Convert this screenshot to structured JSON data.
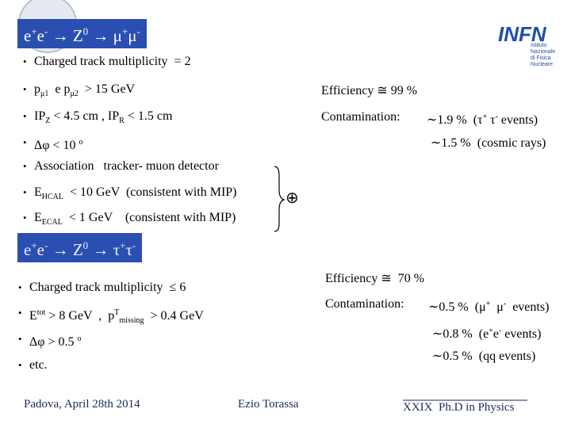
{
  "slide": {
    "title_1": [
      "e",
      "+",
      "e",
      "-",
      " → Z",
      "0",
      " → μ",
      "+",
      "μ",
      "-"
    ],
    "logo": {
      "name": "INFN",
      "subtitle": [
        "Istituto Nazionale",
        "di Fisica Nucleare"
      ]
    },
    "bullets_1": [
      [
        "Charged track multiplicity  = 2"
      ],
      [
        "p",
        "μ1",
        "  e p",
        "μ2",
        "  > 15 GeV"
      ],
      [
        "IP",
        "Z",
        " < 4.5 cm , IP",
        "R",
        " < 1.5 cm"
      ],
      [
        "Δφ < 10 ",
        "o"
      ],
      [
        "Association   tracker- muon detector"
      ],
      [
        "E",
        "HCAL",
        "  < 10 GeV  (consistent with MIP)"
      ],
      [
        "E",
        "ECAL",
        "  < 1 GeV    (consistent with MIP)"
      ]
    ],
    "operator": "⊕",
    "results_1": [
      [
        "Efficiency ≅ 99 %"
      ],
      [
        "Contamination:"
      ],
      [
        "∼1.9 %  (τ",
        "+",
        " τ",
        "-",
        " events)"
      ],
      [
        "∼1.5 %  (cosmic rays)"
      ]
    ],
    "title_2": [
      "e",
      "+",
      "e",
      "-",
      " → Z",
      "0",
      " → τ",
      "+",
      "τ",
      "-"
    ],
    "bullets_2": [
      [
        "Charged track multiplicity  ≤ 6"
      ],
      [
        "E",
        "tot",
        " > 8 GeV  ,  p",
        "T",
        "missing",
        "  > 0.4 GeV"
      ],
      [
        "Δφ > 0.5 ",
        "o"
      ],
      [
        "etc."
      ]
    ],
    "results_2": [
      [
        "Efficiency ≅  70 %"
      ],
      [
        "Contamination:"
      ],
      [
        "∼0.5 %  (μ",
        "+",
        "  μ",
        "-",
        "  events)"
      ],
      [
        "∼0.8 %  (e",
        "+",
        "e",
        "-",
        " events)"
      ],
      [
        "∼0.5 %  (qq events)"
      ]
    ],
    "footer": [
      "Padova, April 28th 2014",
      "Ezio Torassa",
      "XXIX  Ph.D in Physics"
    ]
  }
}
